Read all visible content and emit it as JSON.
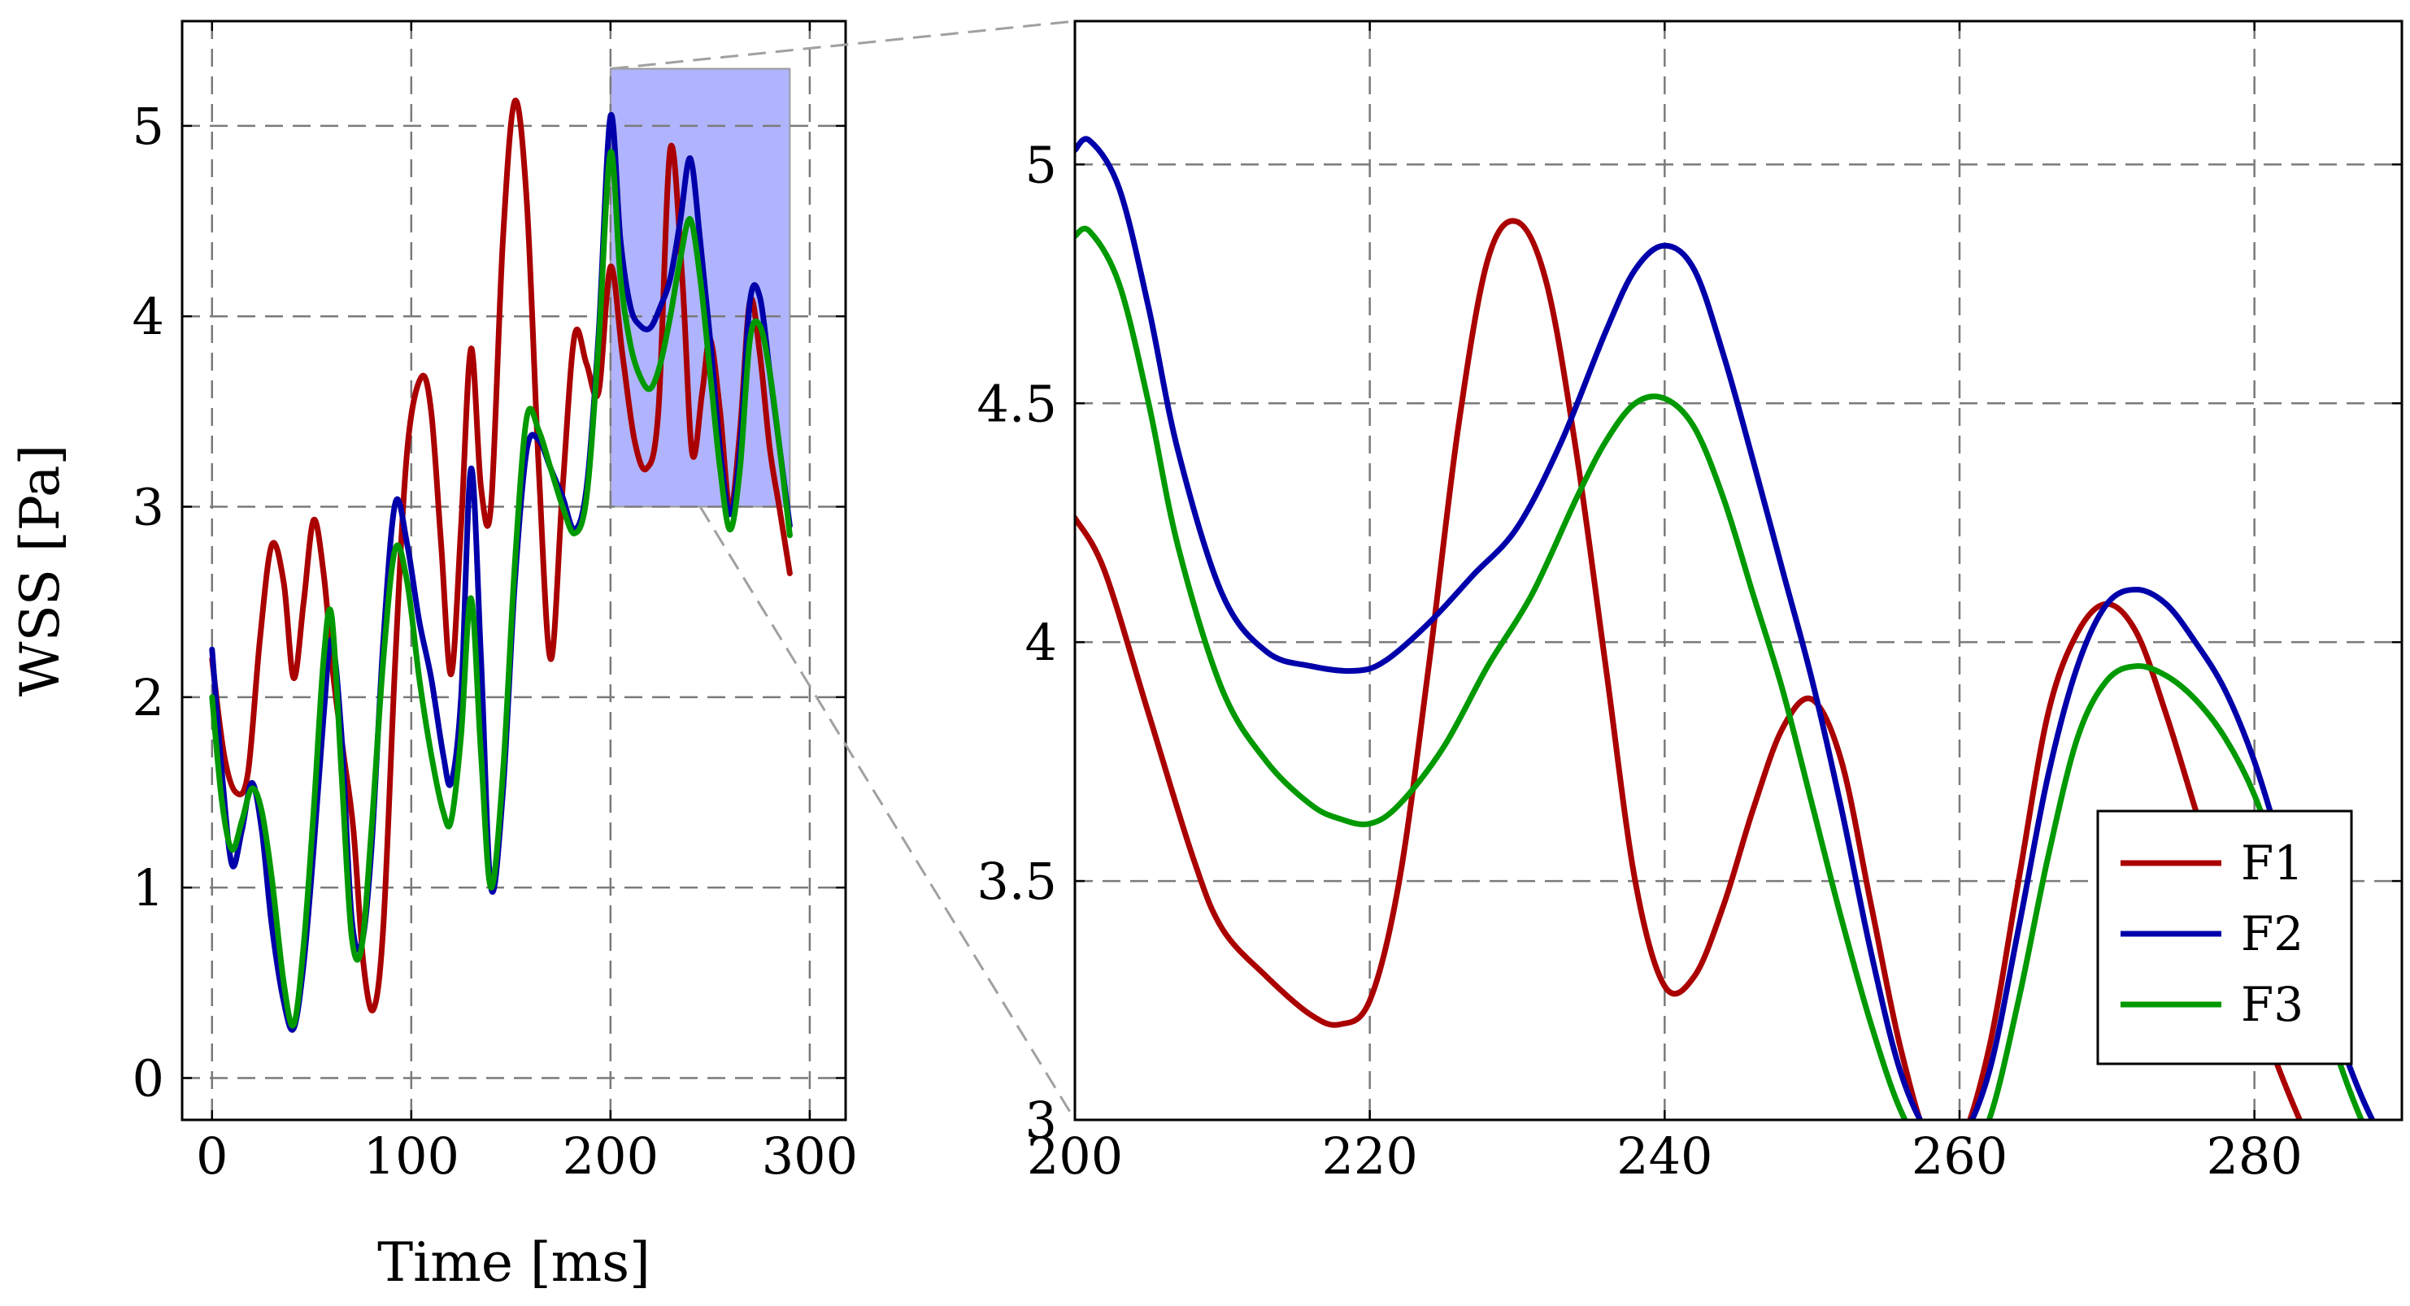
{
  "chart_data": [
    {
      "type": "line",
      "xlabel": "Time [ms]",
      "ylabel": "WSS [Pa]",
      "xlim": [
        -15,
        318
      ],
      "ylim": [
        -0.22,
        5.55
      ],
      "xticks": [
        0,
        100,
        200,
        300
      ],
      "yticks": [
        0,
        1,
        2,
        3,
        4,
        5
      ],
      "grid": true,
      "zoom_region": {
        "x": [
          200,
          290
        ],
        "y": [
          3,
          5.3
        ]
      },
      "series": [
        {
          "name": "F1",
          "color": "#aa0000",
          "x": [
            0,
            6,
            12,
            18,
            24,
            30,
            36,
            41,
            46,
            51,
            56,
            61,
            66,
            71,
            76,
            81,
            86,
            92,
            98,
            105,
            110,
            115,
            120,
            125,
            130,
            135,
            140,
            146,
            152,
            158,
            164,
            170,
            176,
            182,
            188,
            194,
            200,
            206,
            212,
            218,
            224,
            230,
            236,
            241,
            246,
            250,
            255,
            260,
            265,
            270,
            275,
            280,
            285,
            290
          ],
          "y": [
            2.2,
            1.7,
            1.5,
            1.6,
            2.3,
            2.8,
            2.6,
            2.1,
            2.5,
            2.93,
            2.65,
            2.1,
            1.7,
            1.3,
            0.6,
            0.36,
            0.8,
            2.2,
            3.3,
            3.68,
            3.5,
            2.8,
            2.12,
            2.9,
            3.83,
            3.1,
            3.0,
            4.4,
            5.13,
            4.6,
            3.2,
            2.2,
            3.1,
            3.9,
            3.75,
            3.6,
            4.26,
            3.8,
            3.35,
            3.2,
            3.5,
            4.88,
            4.2,
            3.28,
            3.6,
            3.88,
            3.5,
            2.98,
            3.4,
            4.08,
            3.8,
            3.3,
            2.98,
            2.65
          ]
        },
        {
          "name": "F2",
          "color": "#0000aa",
          "x": [
            0,
            5,
            10,
            15,
            20,
            25,
            30,
            36,
            41,
            46,
            51,
            56,
            60,
            65,
            70,
            75,
            80,
            86,
            92,
            98,
            104,
            110,
            116,
            120,
            125,
            130,
            135,
            140,
            146,
            152,
            158,
            164,
            170,
            176,
            182,
            188,
            194,
            200,
            205,
            210,
            215,
            220,
            225,
            230,
            235,
            240,
            245,
            250,
            255,
            260,
            265,
            270,
            275,
            280,
            285,
            290
          ],
          "y": [
            2.25,
            1.6,
            1.12,
            1.3,
            1.55,
            1.3,
            0.8,
            0.4,
            0.26,
            0.6,
            1.2,
            1.9,
            2.3,
            1.8,
            0.85,
            0.7,
            1.2,
            2.3,
            3.02,
            2.8,
            2.4,
            2.1,
            1.7,
            1.55,
            2.0,
            3.2,
            2.2,
            1.0,
            1.5,
            2.6,
            3.3,
            3.35,
            3.2,
            3.05,
            2.88,
            3.1,
            3.9,
            5.05,
            4.4,
            4.05,
            3.95,
            3.94,
            4.05,
            4.2,
            4.5,
            4.83,
            4.4,
            3.88,
            3.3,
            2.96,
            3.3,
            4.08,
            4.1,
            3.7,
            3.3,
            2.9
          ]
        },
        {
          "name": "F3",
          "color": "#009900",
          "x": [
            0,
            5,
            10,
            15,
            20,
            25,
            30,
            36,
            41,
            46,
            51,
            56,
            60,
            65,
            70,
            75,
            80,
            86,
            92,
            98,
            104,
            110,
            116,
            120,
            125,
            130,
            135,
            140,
            146,
            152,
            158,
            164,
            170,
            176,
            182,
            188,
            194,
            200,
            205,
            210,
            215,
            220,
            225,
            230,
            235,
            240,
            245,
            250,
            255,
            260,
            265,
            270,
            275,
            280,
            285,
            290
          ],
          "y": [
            2.0,
            1.45,
            1.2,
            1.35,
            1.52,
            1.4,
            1.05,
            0.5,
            0.28,
            0.7,
            1.4,
            2.2,
            2.43,
            1.6,
            0.75,
            0.68,
            1.3,
            2.2,
            2.78,
            2.6,
            2.1,
            1.7,
            1.4,
            1.35,
            1.8,
            2.52,
            1.7,
            1.0,
            1.6,
            2.7,
            3.47,
            3.4,
            3.2,
            3.0,
            2.86,
            3.05,
            3.85,
            4.86,
            4.2,
            3.85,
            3.68,
            3.62,
            3.75,
            4.0,
            4.3,
            4.51,
            4.2,
            3.7,
            3.2,
            2.88,
            3.2,
            3.88,
            3.95,
            3.7,
            3.3,
            2.85
          ]
        }
      ]
    },
    {
      "type": "line",
      "xlim": [
        200,
        290
      ],
      "ylim": [
        3,
        5.3
      ],
      "xticks": [
        200,
        220,
        240,
        260,
        280
      ],
      "yticks": [
        3,
        3.5,
        4,
        4.5,
        5
      ],
      "grid": true,
      "legend": {
        "location": "bottom-right",
        "entries": [
          "F1",
          "F2",
          "F3"
        ]
      },
      "series": [
        {
          "name": "F1",
          "color": "#aa0000",
          "x": [
            200,
            202,
            205,
            208,
            210,
            213,
            216,
            218,
            220,
            222,
            224,
            226,
            228,
            230,
            232,
            234,
            236,
            238,
            240,
            242,
            244,
            246,
            248,
            250,
            252,
            254,
            256,
            258,
            260,
            262,
            264,
            266,
            268,
            270,
            272,
            274,
            276,
            278,
            280,
            282,
            284,
            286,
            288,
            290
          ],
          "y": [
            4.26,
            4.15,
            3.85,
            3.55,
            3.4,
            3.3,
            3.22,
            3.2,
            3.25,
            3.5,
            3.95,
            4.45,
            4.8,
            4.88,
            4.75,
            4.4,
            3.95,
            3.5,
            3.28,
            3.3,
            3.45,
            3.65,
            3.82,
            3.88,
            3.75,
            3.45,
            3.15,
            2.95,
            2.95,
            3.15,
            3.5,
            3.85,
            4.02,
            4.08,
            4.02,
            3.85,
            3.65,
            3.45,
            3.25,
            3.08,
            2.94,
            2.85,
            2.8,
            2.78
          ]
        },
        {
          "name": "F2",
          "color": "#0000aa",
          "x": [
            200,
            201,
            203,
            205,
            207,
            210,
            213,
            216,
            219,
            221,
            224,
            227,
            230,
            233,
            236,
            238,
            240,
            242,
            244,
            246,
            248,
            250,
            252,
            254,
            256,
            258,
            260,
            262,
            264,
            266,
            268,
            270,
            272,
            274,
            276,
            278,
            280,
            282,
            284,
            286,
            288,
            290
          ],
          "y": [
            5.03,
            5.05,
            4.95,
            4.7,
            4.4,
            4.1,
            3.98,
            3.95,
            3.94,
            3.96,
            4.04,
            4.14,
            4.24,
            4.42,
            4.65,
            4.78,
            4.83,
            4.78,
            4.6,
            4.38,
            4.15,
            3.92,
            3.65,
            3.35,
            3.1,
            2.97,
            2.96,
            3.1,
            3.4,
            3.72,
            3.95,
            4.08,
            4.11,
            4.08,
            4.0,
            3.9,
            3.75,
            3.55,
            3.35,
            3.15,
            3.0,
            2.9
          ]
        },
        {
          "name": "F3",
          "color": "#009900",
          "x": [
            200,
            201,
            203,
            205,
            207,
            210,
            213,
            216,
            218,
            220,
            222,
            225,
            228,
            231,
            234,
            236,
            238,
            240,
            242,
            244,
            246,
            248,
            250,
            252,
            254,
            256,
            258,
            260,
            262,
            264,
            266,
            268,
            270,
            272,
            274,
            276,
            278,
            280,
            282,
            284,
            286,
            288,
            290
          ],
          "y": [
            4.85,
            4.86,
            4.75,
            4.5,
            4.2,
            3.9,
            3.75,
            3.66,
            3.63,
            3.62,
            3.66,
            3.78,
            3.95,
            4.1,
            4.3,
            4.42,
            4.5,
            4.51,
            4.45,
            4.3,
            4.1,
            3.9,
            3.66,
            3.42,
            3.2,
            3.02,
            2.92,
            2.9,
            3.0,
            3.25,
            3.55,
            3.8,
            3.92,
            3.95,
            3.93,
            3.88,
            3.8,
            3.68,
            3.5,
            3.3,
            3.1,
            2.95,
            2.85
          ]
        }
      ]
    }
  ]
}
